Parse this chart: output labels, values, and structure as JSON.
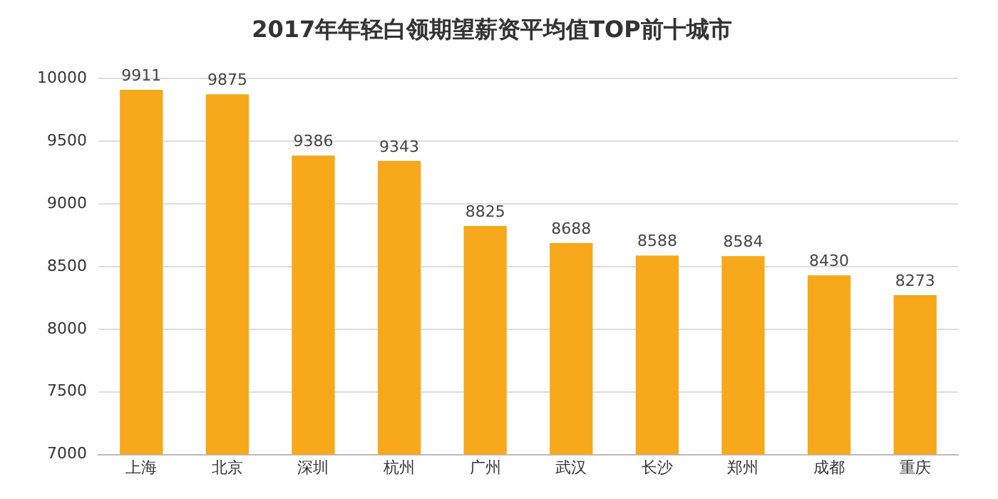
{
  "chart_data": {
    "type": "bar",
    "title": "2017年年轻白领期望薪资平均值TOP前十城市",
    "categories": [
      "上海",
      "北京",
      "深圳",
      "杭州",
      "广州",
      "武汉",
      "长沙",
      "郑州",
      "成都",
      "重庆"
    ],
    "values": [
      9911,
      9875,
      9386,
      9343,
      8825,
      8688,
      8588,
      8584,
      8430,
      8273
    ],
    "color": "#f7a81b",
    "ylim": [
      7000,
      10000
    ],
    "yticks": [
      7000,
      7500,
      8000,
      8500,
      9000,
      9500,
      10000
    ],
    "grid": "y",
    "data_labels": true
  }
}
